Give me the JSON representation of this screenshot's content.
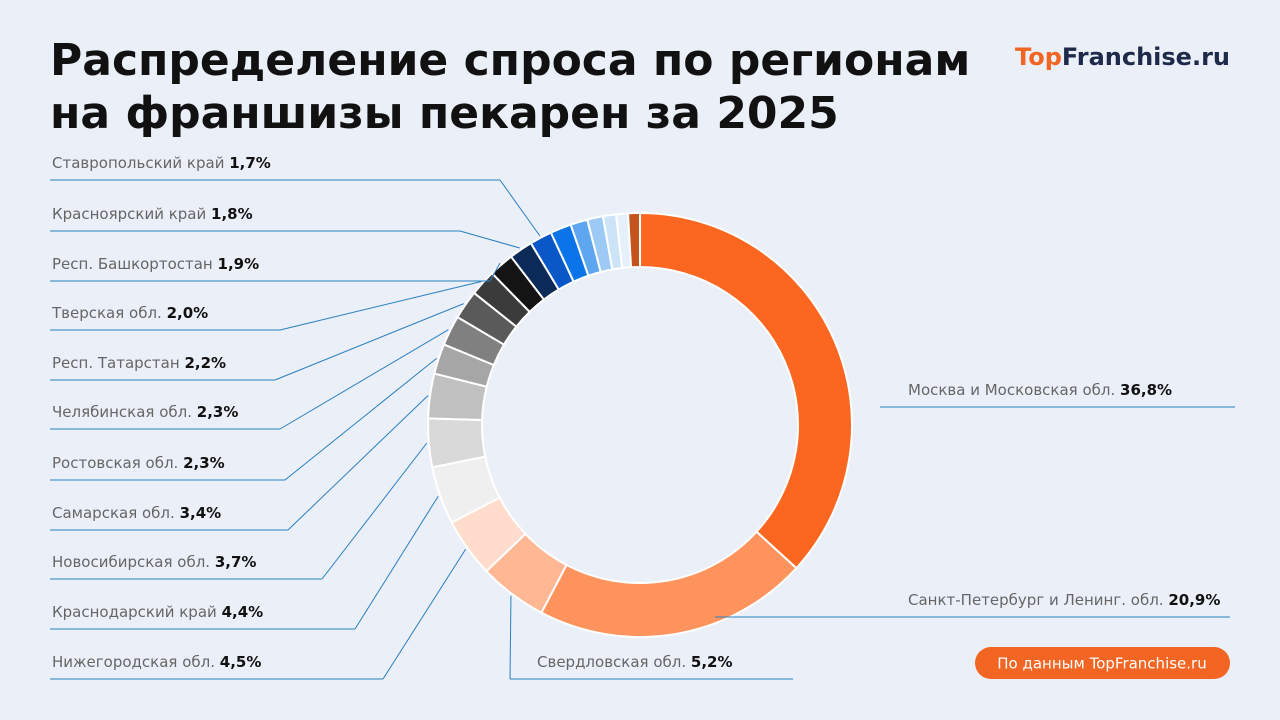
{
  "chart_data": {
    "type": "donut",
    "title": [
      "Распределение спроса по регионам",
      "на франшизы пекарен за 2025"
    ],
    "logo": [
      "Top",
      "Franchise",
      ".ru"
    ],
    "source": "По данным TopFranchise.ru",
    "categories": [
      "Москва и Московская обл.",
      "Санкт-Петербург и Ленинг. обл.",
      "Свердловская обл.",
      "Нижегородская обл.",
      "Краснодарский край",
      "Новосибирская обл.",
      "Самарская обл.",
      "Ростовская обл.",
      "Челябинская обл.",
      "Респ. Татарстан",
      "Тверская обл.",
      "Респ. Башкортостан",
      "Красноярский край",
      "Ставропольский край",
      null,
      null,
      null,
      null,
      null,
      null
    ],
    "values": [
      36.8,
      20.9,
      5.2,
      4.5,
      4.4,
      3.7,
      3.4,
      2.3,
      2.3,
      2.2,
      2.0,
      1.9,
      1.8,
      1.7,
      1.6,
      1.3,
      1.2,
      1.0,
      0.9,
      0.9
    ],
    "value_labels": [
      "36,8%",
      "20,9%",
      "5,2%",
      "4,5%",
      "4,4%",
      "3,7%",
      "3,4%",
      "2,3%",
      "2,3%",
      "2,2%",
      "2,0%",
      "1,9%",
      "1,8%",
      "1,7%",
      null,
      null,
      null,
      null,
      null,
      null
    ],
    "colors": [
      "#fb6720",
      "#ff935e",
      "#ffb794",
      "#ffdccb",
      "#efefef",
      "#d9d9d9",
      "#c0c0c0",
      "#a6a6a6",
      "#808080",
      "#5a5a5a",
      "#3b3b3b",
      "#141414",
      "#0b2a57",
      "#0a58c8",
      "#0b74e8",
      "#5ea7f0",
      "#9dcaf5",
      "#cde3f8",
      "#e6f0fb",
      "#c2541c"
    ]
  }
}
